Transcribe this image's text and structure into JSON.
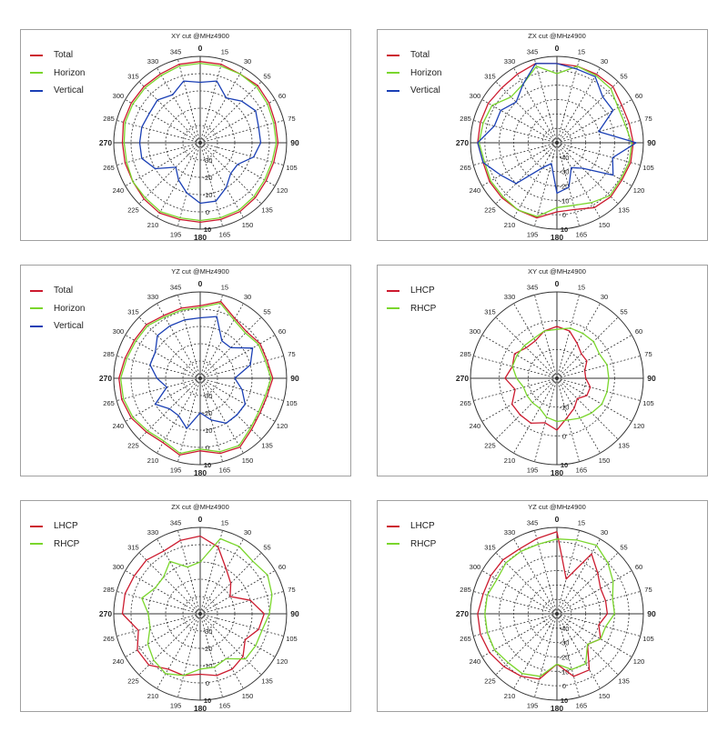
{
  "colors": {
    "Total": "#cc1a2e",
    "Horizon": "#7ad62c",
    "Vertical": "#1a3fb5",
    "LHCP": "#cc1a2e",
    "RHCP": "#7ad62c"
  },
  "chart_data": [
    {
      "type": "polar",
      "title": "XY cut @MHz4900",
      "theta_ticks": [
        "0",
        "15",
        "30",
        "55",
        "60",
        "75",
        "90",
        "105",
        "120",
        "135",
        "150",
        "165",
        "180",
        "195",
        "210",
        "225",
        "240",
        "265",
        "270",
        "285",
        "300",
        "315",
        "330",
        "345"
      ],
      "r_ticks": [
        "10",
        "0",
        "-10",
        "-20",
        "-30"
      ],
      "r_range": [
        -40,
        10
      ],
      "legend": [
        "Total",
        "Horizon",
        "Vertical"
      ],
      "series": [
        {
          "name": "Total",
          "values": [
            7,
            7,
            6,
            7,
            6,
            5,
            5,
            4,
            4,
            5,
            6,
            6,
            6,
            6,
            7,
            6,
            5,
            5,
            5,
            6,
            6,
            6,
            6,
            7
          ]
        },
        {
          "name": "Horizon",
          "values": [
            6,
            6,
            6,
            6,
            5,
            4,
            4,
            3,
            3,
            4,
            5,
            5,
            5,
            5,
            6,
            5,
            5,
            4,
            4,
            5,
            5,
            5,
            5,
            6
          ]
        },
        {
          "name": "Vertical",
          "values": [
            -5,
            -3,
            -10,
            -6,
            -3,
            -5,
            -5,
            -8,
            -15,
            -15,
            -10,
            -5,
            -5,
            -10,
            -15,
            -20,
            -10,
            -5,
            -5,
            -5,
            -6,
            -5,
            -8,
            -3
          ]
        }
      ]
    },
    {
      "type": "polar",
      "title": "ZX cut @MHz4900",
      "theta_ticks": [
        "0",
        "15",
        "30",
        "55",
        "60",
        "75",
        "90",
        "105",
        "120",
        "135",
        "150",
        "165",
        "180",
        "195",
        "210",
        "225",
        "240",
        "265",
        "270",
        "285",
        "300",
        "315",
        "330",
        "345"
      ],
      "r_ticks": [
        "10",
        "0",
        "-10",
        "-20",
        "-30",
        "-40"
      ],
      "r_range": [
        -50,
        10
      ],
      "legend": [
        "Total",
        "Horizon",
        "Vertical"
      ],
      "series": [
        {
          "name": "Total",
          "values": [
            5,
            5,
            5,
            5,
            2,
            2,
            3,
            3,
            2,
            3,
            2,
            -2,
            -2,
            4,
            4,
            4,
            4,
            3,
            5,
            5,
            5,
            4,
            5,
            7
          ]
        },
        {
          "name": "Horizon",
          "values": [
            -2,
            5,
            4,
            3,
            -1,
            -1,
            2,
            2,
            1,
            2,
            -2,
            -5,
            -5,
            3,
            4,
            3,
            3,
            2,
            4,
            3,
            2,
            -5,
            -3,
            5
          ]
        },
        {
          "name": "Vertical",
          "values": [
            5,
            3,
            3,
            -5,
            -5,
            -20,
            5,
            -10,
            -5,
            -25,
            -30,
            -18,
            -15,
            -35,
            -30,
            -10,
            -5,
            3,
            5,
            -5,
            -5,
            -10,
            -3,
            7
          ]
        }
      ]
    },
    {
      "type": "polar",
      "title": "YZ cut @MHz4900",
      "theta_ticks": [
        "0",
        "15",
        "30",
        "55",
        "60",
        "75",
        "90",
        "105",
        "120",
        "135",
        "150",
        "165",
        "180",
        "195",
        "210",
        "225",
        "240",
        "265",
        "270",
        "285",
        "300",
        "315",
        "330",
        "345"
      ],
      "r_ticks": [
        "10",
        "0",
        "-10",
        "-20",
        "-30"
      ],
      "r_range": [
        -40,
        10
      ],
      "legend": [
        "Total",
        "Horizon",
        "Vertical"
      ],
      "series": [
        {
          "name": "Total",
          "values": [
            2,
            6,
            0,
            -2,
            0,
            0,
            2,
            0,
            0,
            2,
            6,
            5,
            2,
            6,
            3,
            4,
            6,
            7,
            7,
            5,
            4,
            4,
            2,
            2
          ]
        },
        {
          "name": "Horizon",
          "values": [
            1,
            5,
            -1,
            -3,
            -1,
            -1,
            1,
            -1,
            -1,
            1,
            5,
            4,
            1,
            5,
            2,
            3,
            5,
            6,
            6,
            4,
            3,
            3,
            1,
            1
          ]
        },
        {
          "name": "Vertical",
          "values": [
            -5,
            -3,
            -15,
            -15,
            -5,
            -10,
            -20,
            -15,
            -10,
            -10,
            -10,
            -15,
            -20,
            -10,
            -15,
            -15,
            -10,
            -20,
            -15,
            -10,
            -10,
            -5,
            -5,
            -5
          ]
        }
      ]
    },
    {
      "type": "polar",
      "title": "XY cut @MHz4900",
      "theta_ticks": [
        "0",
        "15",
        "30",
        "55",
        "60",
        "75",
        "90",
        "105",
        "120",
        "135",
        "150",
        "165",
        "180",
        "195",
        "210",
        "225",
        "240",
        "265",
        "270",
        "285",
        "300",
        "315",
        "330",
        "345"
      ],
      "r_ticks": [
        "10",
        "0",
        "-10"
      ],
      "r_range": [
        -20,
        10
      ],
      "legend": [
        "LHCP",
        "RHCP"
      ],
      "series": [
        {
          "name": "LHCP",
          "values": [
            -2,
            -3,
            -6,
            -8,
            -8,
            -10,
            -10,
            -8,
            -8,
            -10,
            -8,
            -6,
            -2,
            -4,
            -2,
            -2,
            -2,
            -5,
            -2,
            -4,
            -3,
            -5,
            -5,
            -3
          ]
        },
        {
          "name": "RHCP",
          "values": [
            -3,
            -2,
            -2,
            -2,
            -3,
            -2,
            -2,
            -2,
            -2,
            -3,
            -4,
            -5,
            -5,
            -6,
            -8,
            -8,
            -8,
            -8,
            -6,
            -4,
            -4,
            -4,
            -4,
            -3
          ]
        }
      ]
    },
    {
      "type": "polar",
      "title": "ZX cut @MHz4900",
      "theta_ticks": [
        "0",
        "15",
        "30",
        "55",
        "60",
        "75",
        "90",
        "105",
        "120",
        "135",
        "150",
        "165",
        "180",
        "195",
        "210",
        "225",
        "240",
        "265",
        "270",
        "285",
        "300",
        "315",
        "330",
        "345"
      ],
      "r_ticks": [
        "10",
        "0",
        "-10",
        "-20",
        "-30"
      ],
      "r_range": [
        -40,
        10
      ],
      "legend": [
        "LHCP",
        "RHCP"
      ],
      "series": [
        {
          "name": "LHCP",
          "values": [
            5,
            0,
            -10,
            -15,
            -20,
            -10,
            -3,
            -5,
            -10,
            -5,
            -3,
            -3,
            -5,
            -3,
            -3,
            2,
            2,
            -3,
            5,
            5,
            4,
            4,
            2,
            4
          ]
        },
        {
          "name": "RHCP",
          "values": [
            -10,
            5,
            5,
            3,
            5,
            3,
            0,
            -3,
            -3,
            -3,
            -10,
            -8,
            -8,
            -3,
            0,
            -2,
            -5,
            -10,
            -10,
            -5,
            -10,
            -10,
            -5,
            -12
          ]
        }
      ]
    },
    {
      "type": "polar",
      "title": "YZ cut @MHz4900",
      "theta_ticks": [
        "0",
        "15",
        "30",
        "55",
        "60",
        "75",
        "90",
        "105",
        "120",
        "135",
        "150",
        "165",
        "180",
        "195",
        "210",
        "225",
        "240",
        "265",
        "270",
        "285",
        "300",
        "315",
        "330",
        "345"
      ],
      "r_ticks": [
        "10",
        "0",
        "-10",
        "-20",
        "-30",
        "-40"
      ],
      "r_range": [
        -50,
        10
      ],
      "legend": [
        "LHCP",
        "RHCP"
      ],
      "series": [
        {
          "name": "LHCP",
          "values": [
            7,
            -25,
            -2,
            -10,
            -15,
            -15,
            -15,
            -20,
            -15,
            -20,
            -5,
            -5,
            -15,
            -3,
            0,
            2,
            4,
            5,
            5,
            3,
            3,
            3,
            2,
            4
          ]
        },
        {
          "name": "RHCP",
          "values": [
            2,
            3,
            5,
            0,
            -5,
            -10,
            -10,
            -15,
            -15,
            -20,
            -10,
            -10,
            -15,
            -5,
            -2,
            -2,
            0,
            0,
            0,
            0,
            -2,
            0,
            0,
            0
          ]
        }
      ]
    }
  ]
}
